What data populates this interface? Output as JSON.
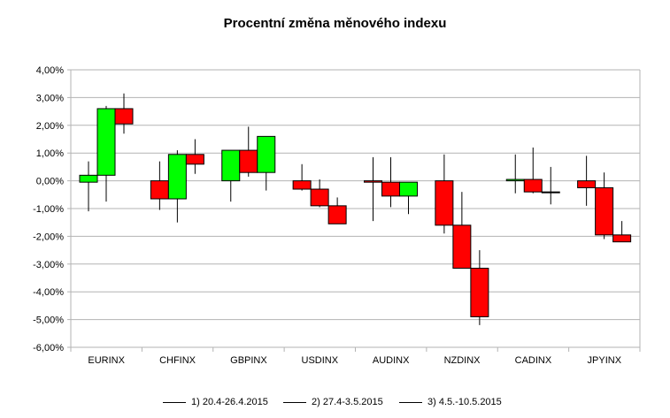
{
  "chart_data": {
    "type": "candlestick",
    "title": "Procentní změna měnového indexu",
    "y_ticks": [
      "4,00%",
      "3,00%",
      "2,00%",
      "1,00%",
      "0,00%",
      "-1,00%",
      "-2,00%",
      "-3,00%",
      "-4,00%",
      "-5,00%",
      "-6,00%"
    ],
    "ylim": [
      -6,
      4
    ],
    "grid": true,
    "legend_position": "bottom",
    "up_color": "#00ff00",
    "down_color": "#ff0000",
    "categories": [
      "EURINX",
      "CHFINX",
      "GBPINX",
      "USDINX",
      "AUDINX",
      "NZDINX",
      "CADINX",
      "JPYINX"
    ],
    "series": [
      {
        "name": "1) 20.4-26.4.2015"
      },
      {
        "name": "2) 27.4-3.5.2015"
      },
      {
        "name": "3) 4.5.-10.5.2015"
      }
    ],
    "candles": [
      [
        {
          "open": -0.05,
          "close": 0.2,
          "high": 0.7,
          "low": -1.1
        },
        {
          "open": 0.2,
          "close": 2.6,
          "high": 2.7,
          "low": -0.75
        },
        {
          "open": 2.6,
          "close": 2.05,
          "high": 3.15,
          "low": 1.7
        }
      ],
      [
        {
          "open": 0.0,
          "close": -0.65,
          "high": 0.7,
          "low": -1.05
        },
        {
          "open": -0.65,
          "close": 0.95,
          "high": 1.1,
          "low": -1.5
        },
        {
          "open": 0.95,
          "close": 0.6,
          "high": 1.5,
          "low": 0.25
        }
      ],
      [
        {
          "open": 0.0,
          "close": 1.1,
          "high": 1.1,
          "low": -0.75
        },
        {
          "open": 1.1,
          "close": 0.3,
          "high": 1.95,
          "low": 0.15
        },
        {
          "open": 0.3,
          "close": 1.6,
          "high": 1.6,
          "low": -0.35
        }
      ],
      [
        {
          "open": 0.0,
          "close": -0.3,
          "high": 0.6,
          "low": -0.35
        },
        {
          "open": -0.3,
          "close": -0.9,
          "high": 0.05,
          "low": -0.95
        },
        {
          "open": -0.9,
          "close": -1.55,
          "high": -0.6,
          "low": -1.55
        }
      ],
      [
        {
          "open": 0.0,
          "close": -0.05,
          "high": 0.85,
          "low": -1.45
        },
        {
          "open": -0.05,
          "close": -0.55,
          "high": 0.85,
          "low": -0.95
        },
        {
          "open": -0.55,
          "close": -0.05,
          "high": -0.05,
          "low": -1.2
        }
      ],
      [
        {
          "open": 0.0,
          "close": -1.6,
          "high": 0.95,
          "low": -1.9
        },
        {
          "open": -1.6,
          "close": -3.15,
          "high": -0.4,
          "low": -3.15
        },
        {
          "open": -3.15,
          "close": -4.9,
          "high": -2.5,
          "low": -5.2
        }
      ],
      [
        {
          "open": 0.0,
          "close": 0.05,
          "high": 0.95,
          "low": -0.45
        },
        {
          "open": 0.05,
          "close": -0.4,
          "high": 1.2,
          "low": -0.45
        },
        {
          "open": -0.4,
          "close": -0.4,
          "high": 0.5,
          "low": -0.85
        }
      ],
      [
        {
          "open": 0.0,
          "close": -0.25,
          "high": 0.9,
          "low": -0.9
        },
        {
          "open": -0.25,
          "close": -1.95,
          "high": 0.3,
          "low": -2.1
        },
        {
          "open": -1.95,
          "close": -2.2,
          "high": -1.45,
          "low": -2.2
        }
      ]
    ]
  }
}
